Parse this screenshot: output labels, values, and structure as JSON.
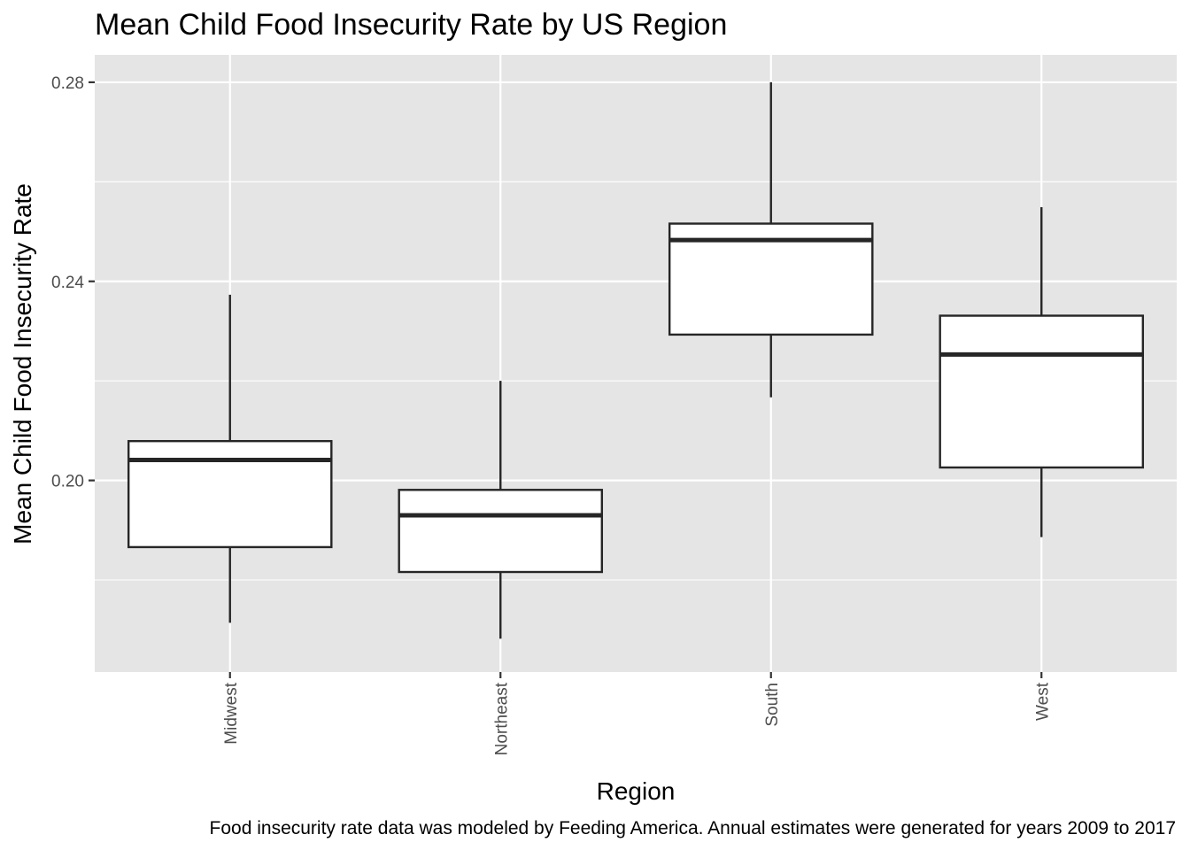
{
  "chart_data": {
    "type": "box",
    "title": "Mean Child Food Insecurity Rate by US Region",
    "xlabel": "Region",
    "ylabel": "Mean Child Food Insecurity Rate",
    "caption": "Food insecurity rate data was modeled by Feeding America. Annual estimates were generated for years 2009 to 2017",
    "ylim": [
      0.1615,
      0.2855
    ],
    "yticks": [
      0.2,
      0.24,
      0.28
    ],
    "ytick_labels": [
      "0.20",
      "0.24",
      "0.28"
    ],
    "grid": true,
    "legend": "none",
    "categories": [
      "Midwest",
      "Northeast",
      "South",
      "West"
    ],
    "boxes": [
      {
        "category": "Midwest",
        "min": 0.1714,
        "q1": 0.1866,
        "median": 0.2041,
        "q3": 0.2079,
        "max": 0.2373
      },
      {
        "category": "Northeast",
        "min": 0.1682,
        "q1": 0.1816,
        "median": 0.193,
        "q3": 0.1981,
        "max": 0.22
      },
      {
        "category": "South",
        "min": 0.2167,
        "q1": 0.2293,
        "median": 0.2483,
        "q3": 0.2516,
        "max": 0.28
      },
      {
        "category": "West",
        "min": 0.1886,
        "q1": 0.2026,
        "median": 0.2253,
        "q3": 0.2331,
        "max": 0.2549
      }
    ]
  },
  "colors": {
    "panel_background": "#e5e5e5",
    "grid_line": "#ffffff",
    "box_fill": "#ffffff",
    "box_stroke": "#262626",
    "tick": "#333333",
    "tick_label": "#4d4d4d",
    "text": "#000000"
  }
}
